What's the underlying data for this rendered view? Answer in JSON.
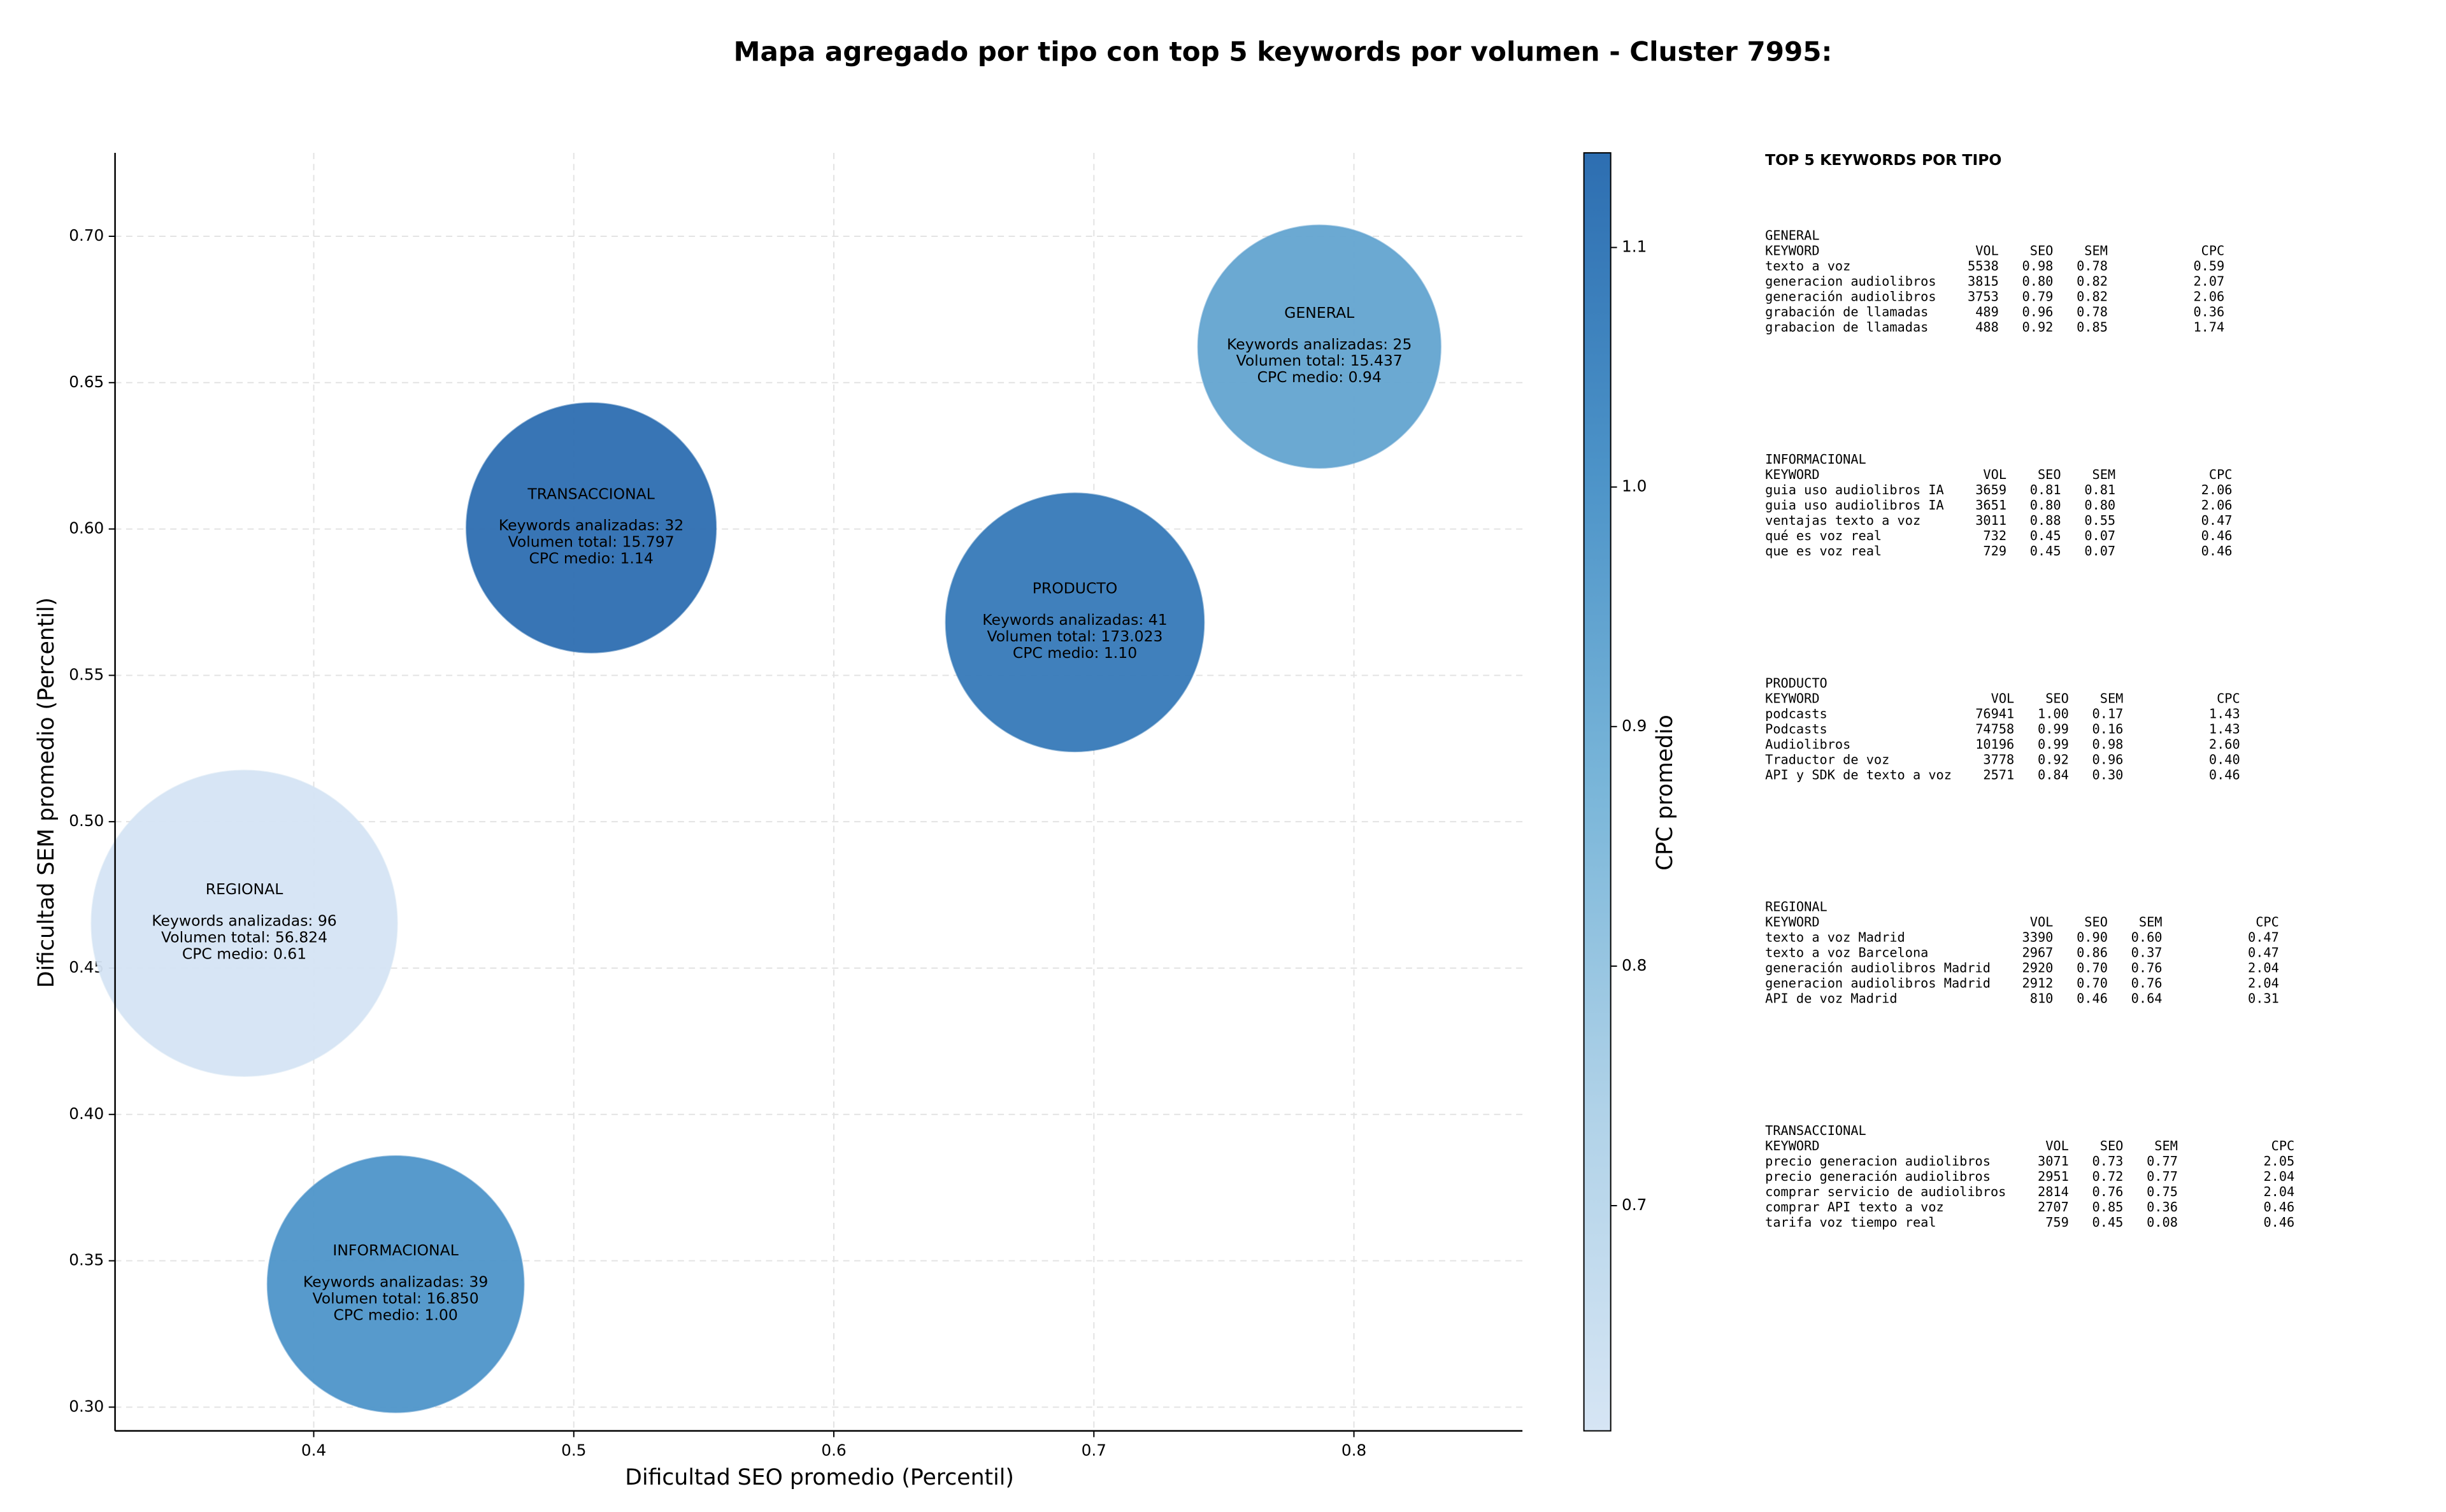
{
  "chart_data": {
    "type": "scatter",
    "title": "Mapa agregado por tipo con top 5 keywords por volumen - Cluster 7995:",
    "xlabel": "Dificultad SEO promedio (Percentil)",
    "ylabel": "Dificultad SEM promedio (Percentil)",
    "xlim": [
      0.3236,
      0.8648
    ],
    "ylim": [
      0.2919,
      0.7285
    ],
    "xticks": [
      0.4,
      0.5,
      0.6,
      0.7,
      0.8
    ],
    "yticks": [
      {
        "value": 0.3,
        "label": "0.30"
      },
      {
        "value": 0.35,
        "label": "0.35"
      },
      {
        "value": 0.4,
        "label": "0.40"
      },
      {
        "value": 0.45,
        "label": "0.45"
      },
      {
        "value": 0.5,
        "label": "0.50"
      },
      {
        "value": 0.55,
        "label": "0.55"
      },
      {
        "value": 0.6,
        "label": "0.60"
      },
      {
        "value": 0.65,
        "label": "0.65"
      },
      {
        "value": 0.7,
        "label": "0.70"
      }
    ],
    "grid": true,
    "colorbar": {
      "label": "CPC promedio",
      "lim": [
        0.606,
        1.1395
      ],
      "ticks": [
        0.7,
        0.8,
        0.9,
        {
          "value": 1,
          "label": "1.0"
        },
        1.1
      ],
      "colormap": [
        "#d6e5f4",
        "#b0d2e8",
        "#7ab6d9",
        "#4c93c8",
        "#2d6eb1"
      ]
    },
    "points": [
      {
        "name": "GENERAL",
        "x": 0.7867,
        "y": 0.6623,
        "size": 25,
        "color_value": 0.94,
        "lines": [
          "Keywords analizadas: 25",
          "Volumen total: 15.437",
          "CPC medio: 0.94"
        ]
      },
      {
        "name": "INFORMACIONAL",
        "x": 0.4315,
        "y": 0.342,
        "size": 39,
        "color_value": 1.0,
        "lines": [
          "Keywords analizadas: 39",
          "Volumen total: 16.850",
          "CPC medio: 1.00"
        ]
      },
      {
        "name": "PRODUCTO",
        "x": 0.6927,
        "y": 0.5681,
        "size": 41,
        "color_value": 1.1,
        "lines": [
          "Keywords analizadas: 41",
          "Volumen total: 173.023",
          "CPC medio: 1.10"
        ]
      },
      {
        "name": "REGIONAL",
        "x": 0.3733,
        "y": 0.4653,
        "size": 96,
        "color_value": 0.61,
        "lines": [
          "Keywords analizadas: 96",
          "Volumen total: 56.824",
          "CPC medio: 0.61"
        ]
      },
      {
        "name": "TRANSACCIONAL",
        "x": 0.5067,
        "y": 0.6004,
        "size": 32,
        "color_value": 1.14,
        "lines": [
          "Keywords analizadas: 32",
          "Volumen total: 15.797",
          "CPC medio: 1.14"
        ]
      }
    ]
  },
  "keyword_table": {
    "title": "TOP 5 KEYWORDS POR TIPO",
    "columns": [
      "KEYWORD",
      "VOL",
      "SEO",
      "SEM",
      "CPC"
    ],
    "sections": [
      {
        "name": "GENERAL",
        "rows": [
          [
            "texto a voz",
            "5538",
            "0.98",
            "0.78",
            "0.59"
          ],
          [
            "generacion audiolibros",
            "3815",
            "0.80",
            "0.82",
            "2.07"
          ],
          [
            "generación audiolibros",
            "3753",
            "0.79",
            "0.82",
            "2.06"
          ],
          [
            "grabación de llamadas",
            "489",
            "0.96",
            "0.78",
            "0.36"
          ],
          [
            "grabacion de llamadas",
            "488",
            "0.92",
            "0.85",
            "1.74"
          ]
        ]
      },
      {
        "name": "INFORMACIONAL",
        "rows": [
          [
            "guia uso audiolibros IA",
            "3659",
            "0.81",
            "0.81",
            "2.06"
          ],
          [
            "guia uso audiolibros IA",
            "3651",
            "0.80",
            "0.80",
            "2.06"
          ],
          [
            "ventajas texto a voz",
            "3011",
            "0.88",
            "0.55",
            "0.47"
          ],
          [
            "qué es voz real",
            "732",
            "0.45",
            "0.07",
            "0.46"
          ],
          [
            "que es voz real",
            "729",
            "0.45",
            "0.07",
            "0.46"
          ]
        ]
      },
      {
        "name": "PRODUCTO",
        "rows": [
          [
            "podcasts",
            "76941",
            "1.00",
            "0.17",
            "1.43"
          ],
          [
            "Podcasts",
            "74758",
            "0.99",
            "0.16",
            "1.43"
          ],
          [
            "Audiolibros",
            "10196",
            "0.99",
            "0.98",
            "2.60"
          ],
          [
            "Traductor de voz",
            "3778",
            "0.92",
            "0.96",
            "0.40"
          ],
          [
            "API y SDK de texto a voz",
            "2571",
            "0.84",
            "0.30",
            "0.46"
          ]
        ]
      },
      {
        "name": "REGIONAL",
        "rows": [
          [
            "texto a voz Madrid",
            "3390",
            "0.90",
            "0.60",
            "0.47"
          ],
          [
            "texto a voz Barcelona",
            "2967",
            "0.86",
            "0.37",
            "0.47"
          ],
          [
            "generación audiolibros Madrid",
            "2920",
            "0.70",
            "0.76",
            "2.04"
          ],
          [
            "generacion audiolibros Madrid",
            "2912",
            "0.70",
            "0.76",
            "2.04"
          ],
          [
            "API de voz Madrid",
            "810",
            "0.46",
            "0.64",
            "0.31"
          ]
        ]
      },
      {
        "name": "TRANSACCIONAL",
        "rows": [
          [
            "precio generacion audiolibros",
            "3071",
            "0.73",
            "0.77",
            "2.05"
          ],
          [
            "precio generación audiolibros",
            "2951",
            "0.72",
            "0.77",
            "2.04"
          ],
          [
            "comprar servicio de audiolibros",
            "2814",
            "0.76",
            "0.75",
            "2.04"
          ],
          [
            "comprar API texto a voz",
            "2707",
            "0.85",
            "0.36",
            "0.46"
          ],
          [
            "tarifa voz tiempo real",
            "759",
            "0.45",
            "0.08",
            "0.46"
          ]
        ]
      }
    ]
  }
}
